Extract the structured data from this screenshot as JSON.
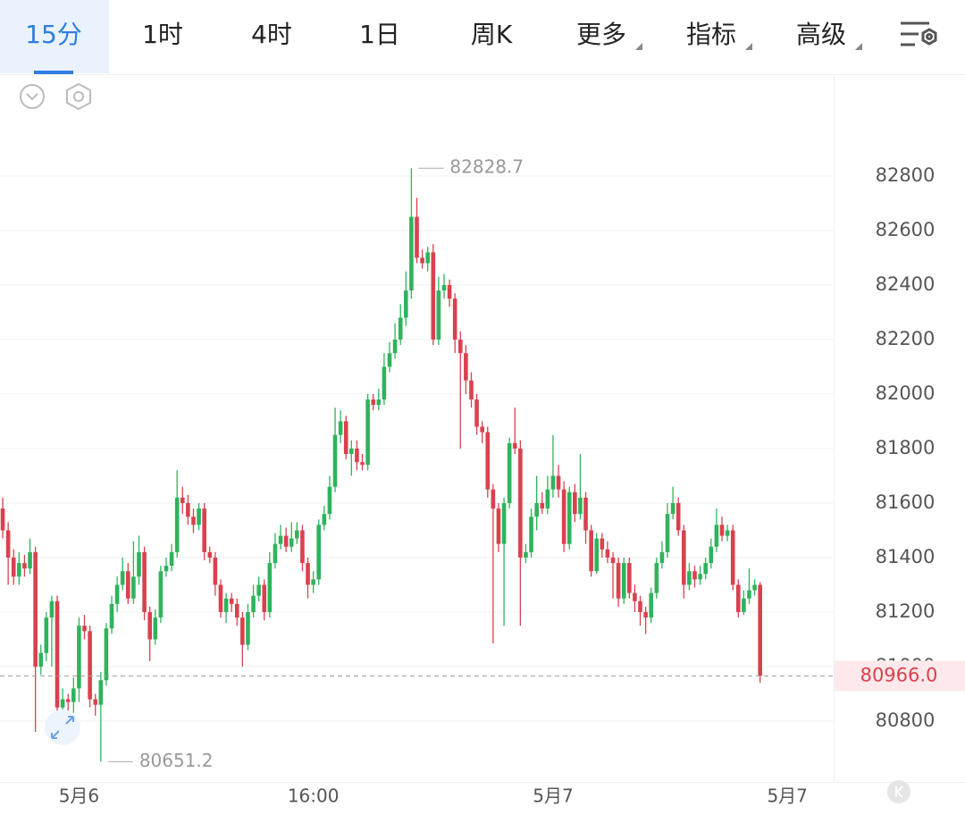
{
  "tabs": [
    "15分",
    "1时",
    "4时",
    "1日",
    "周K",
    "更多",
    "指标",
    "高级"
  ],
  "chart_data": {
    "type": "candlestick",
    "open": [
      81580,
      81500,
      81400,
      81330,
      81380,
      81360,
      81420,
      81000,
      81050,
      81180,
      81240,
      80850,
      80880,
      80870,
      80920,
      81150,
      81130,
      80880,
      80860,
      80950,
      81140,
      81230,
      81300,
      81350,
      81250,
      81330,
      81420,
      81200,
      81100,
      81180,
      81350,
      81370,
      81420,
      81620,
      81600,
      81550,
      81520,
      81580,
      81420,
      81400,
      81300,
      81200,
      81250,
      81230,
      81180,
      81080,
      81200,
      81260,
      81300,
      81200,
      81380,
      81450,
      81480,
      81440,
      81470,
      81500,
      81380,
      81300,
      81320,
      81520,
      81560,
      81660,
      81850,
      81900,
      81780,
      81800,
      81750,
      81740,
      81980,
      81960,
      81980,
      82100,
      82150,
      82200,
      82280,
      82380,
      82650,
      82500,
      82480,
      82520,
      82200,
      82380,
      82400,
      82350,
      82200,
      82150,
      82050,
      81980,
      81880,
      81860,
      81650,
      81580,
      81450,
      81600,
      81820,
      81800,
      81400,
      81420,
      81550,
      81600,
      81580,
      81650,
      81700,
      81650,
      81450,
      81640,
      81560,
      81620,
      81500,
      81350,
      81470,
      81430,
      81400,
      81380,
      81250,
      81380,
      81270,
      81240,
      81200,
      81180,
      81270,
      81380,
      81420,
      81560,
      81600,
      81500,
      81300,
      81350,
      81320,
      81340,
      81380,
      81440,
      81520,
      81480,
      81500,
      81300,
      81200,
      81250,
      81280,
      81300
    ],
    "high": [
      81620,
      81530,
      81430,
      81420,
      81410,
      81470,
      81440,
      81080,
      81200,
      81260,
      81260,
      80920,
      80900,
      80960,
      81180,
      81190,
      81150,
      80900,
      80980,
      81160,
      81260,
      81330,
      81400,
      81380,
      81460,
      81480,
      81440,
      81220,
      81210,
      81370,
      81400,
      81450,
      81720,
      81660,
      81630,
      81580,
      81600,
      81600,
      81440,
      81420,
      81320,
      81270,
      81270,
      81250,
      81200,
      81230,
      81300,
      81330,
      81320,
      81420,
      81490,
      81520,
      81510,
      81530,
      81530,
      81520,
      81400,
      81350,
      81540,
      81590,
      81700,
      81950,
      81940,
      81920,
      81830,
      81830,
      81780,
      82000,
      82000,
      82020,
      82150,
      82190,
      82260,
      82330,
      82450,
      82828.7,
      82720,
      82530,
      82540,
      82550,
      82430,
      82440,
      82420,
      82370,
      82230,
      82180,
      82080,
      82000,
      81900,
      81880,
      81670,
      81600,
      81620,
      81840,
      81950,
      81830,
      81450,
      81580,
      81700,
      81640,
      81700,
      81850,
      81740,
      81680,
      81660,
      81670,
      81780,
      81640,
      81520,
      81490,
      81490,
      81460,
      81420,
      81400,
      81400,
      81400,
      81300,
      81260,
      81220,
      81290,
      81400,
      81460,
      81600,
      81660,
      81620,
      81520,
      81380,
      81370,
      81370,
      81400,
      81470,
      81580,
      81550,
      81520,
      81520,
      81320,
      81280,
      81360,
      81320,
      81310
    ],
    "low": [
      81470,
      81300,
      81300,
      81300,
      81330,
      81340,
      80760,
      80970,
      81020,
      81000,
      80820,
      80720,
      80820,
      80830,
      80870,
      81100,
      80850,
      80820,
      80651.2,
      80930,
      81120,
      81200,
      81280,
      81230,
      81230,
      81300,
      81170,
      81020,
      81080,
      81160,
      81330,
      81350,
      81400,
      81560,
      81520,
      81490,
      81500,
      81390,
      81380,
      81260,
      81180,
      81160,
      81200,
      81150,
      81000,
      81060,
      81180,
      81240,
      81170,
      81180,
      81360,
      81430,
      81420,
      81420,
      81450,
      81350,
      81250,
      81270,
      81300,
      81500,
      81540,
      81640,
      81820,
      81760,
      81700,
      81720,
      81720,
      81720,
      81940,
      81940,
      81960,
      82080,
      82130,
      82180,
      82250,
      82350,
      82480,
      82460,
      82450,
      82180,
      82180,
      82350,
      82320,
      82150,
      81800,
      82000,
      81950,
      81850,
      81820,
      81620,
      81085,
      81420,
      81150,
      81580,
      81780,
      81150,
      81380,
      81400,
      81500,
      81560,
      81560,
      81620,
      81620,
      81420,
      81430,
      81530,
      81540,
      81450,
      81330,
      81340,
      81400,
      81380,
      81250,
      81220,
      81230,
      81250,
      81200,
      81150,
      81120,
      81160,
      81250,
      81360,
      81400,
      81540,
      81480,
      81250,
      81280,
      81290,
      81300,
      81320,
      81360,
      81420,
      81460,
      81460,
      81280,
      81180,
      81190,
      81230,
      81260,
      80940
    ],
    "close": [
      81500,
      81400,
      81330,
      81380,
      81360,
      81420,
      81000,
      81050,
      81180,
      81240,
      80850,
      80880,
      80870,
      80920,
      81150,
      81130,
      80880,
      80860,
      80950,
      81140,
      81230,
      81300,
      81350,
      81250,
      81330,
      81420,
      81200,
      81100,
      81180,
      81350,
      81370,
      81420,
      81620,
      81600,
      81550,
      81520,
      81580,
      81420,
      81400,
      81300,
      81200,
      81250,
      81230,
      81180,
      81080,
      81200,
      81260,
      81300,
      81200,
      81380,
      81450,
      81480,
      81440,
      81470,
      81500,
      81380,
      81300,
      81320,
      81520,
      81560,
      81660,
      81850,
      81900,
      81780,
      81800,
      81750,
      81740,
      81980,
      81960,
      81980,
      82100,
      82150,
      82200,
      82280,
      82380,
      82650,
      82500,
      82480,
      82520,
      82200,
      82380,
      82400,
      82350,
      82200,
      82150,
      82050,
      81980,
      81880,
      81860,
      81650,
      81580,
      81450,
      81600,
      81820,
      81800,
      81400,
      81420,
      81550,
      81600,
      81580,
      81650,
      81700,
      81650,
      81450,
      81640,
      81560,
      81620,
      81500,
      81350,
      81470,
      81430,
      81400,
      81380,
      81250,
      81380,
      81270,
      81240,
      81200,
      81180,
      81270,
      81380,
      81420,
      81560,
      81600,
      81500,
      81300,
      81350,
      81320,
      81340,
      81380,
      81440,
      81520,
      81480,
      81500,
      81300,
      81200,
      81250,
      81280,
      81300,
      80966
    ],
    "up_color": "#2fb35c",
    "down_color": "#d9414e",
    "xlim": [
      -0.5,
      152.5
    ],
    "xticks": [
      {
        "value": 14,
        "label": "5月6"
      },
      {
        "value": 57,
        "label": "16:00"
      },
      {
        "value": 101,
        "label": "5月7"
      },
      {
        "value": 144,
        "label": "5月7"
      }
    ],
    "ylim": [
      80577,
      83167
    ],
    "yticks": [
      80800,
      81000,
      81200,
      81400,
      81600,
      81800,
      82000,
      82200,
      82400,
      82600,
      82800
    ],
    "grid": true,
    "max_marker": 82828.7,
    "min_marker": 80651.2,
    "last_price": {
      "value": 80966,
      "label": "80966.0"
    }
  }
}
